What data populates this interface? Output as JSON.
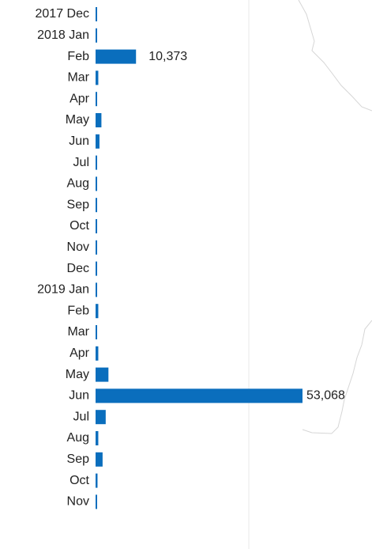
{
  "chart_data": {
    "type": "bar",
    "orientation": "horizontal",
    "categories": [
      "2017 Dec",
      "2018 Jan",
      "Feb",
      "Mar",
      "Apr",
      "May",
      "Jun",
      "Jul",
      "Aug",
      "Sep",
      "Oct",
      "Nov",
      "Dec",
      "2019 Jan",
      "Feb",
      "Mar",
      "Apr",
      "May",
      "Jun",
      "Jul",
      "Aug",
      "Sep",
      "Oct",
      "Nov"
    ],
    "values": [
      120,
      150,
      10373,
      700,
      200,
      1500,
      1000,
      120,
      120,
      120,
      120,
      120,
      120,
      120,
      700,
      200,
      700,
      3300,
      53068,
      2600,
      700,
      1800,
      500,
      120
    ],
    "data_labels": [
      "",
      "",
      "10,373",
      "",
      "",
      "",
      "",
      "",
      "",
      "",
      "",
      "",
      "",
      "",
      "",
      "",
      "",
      "",
      "53,068",
      "",
      "",
      "",
      "",
      ""
    ],
    "xlim": [
      0,
      53068
    ],
    "bar_color": "#0a6ebd",
    "grid": false,
    "title": "",
    "xlabel": "",
    "ylabel": ""
  }
}
